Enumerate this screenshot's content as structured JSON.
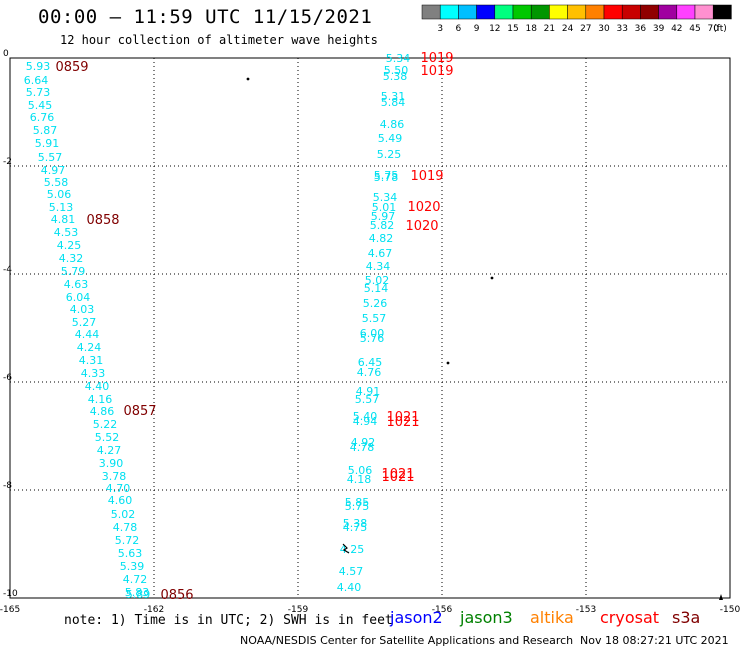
{
  "header": {
    "title": "00:00 – 11:59 UTC 11/15/2021",
    "subtitle": "12 hour collection of altimeter wave heights"
  },
  "colorbar": {
    "unit_label": "(ft)",
    "ticks": [
      "3",
      "6",
      "9",
      "12",
      "15",
      "18",
      "21",
      "24",
      "27",
      "30",
      "33",
      "36",
      "39",
      "42",
      "45",
      "70"
    ],
    "colors": [
      "#808080",
      "#00ffff",
      "#00bfff",
      "#0000ff",
      "#00ff7f",
      "#00c800",
      "#009600",
      "#ffff00",
      "#ffc000",
      "#ff8000",
      "#ff0000",
      "#c80000",
      "#900000",
      "#a000a0",
      "#ff40ff",
      "#ff90d0",
      "#000000"
    ]
  },
  "axes": {
    "x_ticks": [
      "-165",
      "-162",
      "-159",
      "-156",
      "-153",
      "-150"
    ],
    "y_ticks": [
      "0",
      "-2",
      "-4",
      "-6",
      "-8",
      "-10"
    ]
  },
  "map_data": {
    "swh_color": "#00e0f0",
    "time_color": "#800000",
    "pressure_color": "#ff0000",
    "track_a_values": [
      "5.93",
      "6.64",
      "5.73",
      "5.45",
      "6.76",
      "5.87",
      "5.91",
      "5.57",
      "4.97",
      "5.58",
      "5.06",
      "5.13",
      "4.81",
      "4.53",
      "4.25",
      "4.32",
      "5.79",
      "4.63",
      "6.04",
      "4.03",
      "5.27",
      "4.44",
      "4.24",
      "4.31",
      "4.33",
      "4.40",
      "4.16",
      "4.86",
      "5.22",
      "5.52",
      "4.27",
      "3.90",
      "3.78",
      "4.70",
      "4.60",
      "5.02",
      "4.78",
      "5.72",
      "5.63",
      "5.39",
      "4.72",
      "5.83",
      "5.89"
    ],
    "track_a_times": [
      "0859",
      "0858",
      "0857",
      "0856"
    ],
    "track_b_values": [
      "5.34",
      "5.50",
      "5.38",
      "5.31",
      "5.84",
      "4.86",
      "5.49",
      "5.25",
      "5.75",
      "5.78",
      "5.34",
      "5.01",
      "5.97",
      "5.82",
      "4.82",
      "4.67",
      "4.34",
      "5.02",
      "5.14",
      "5.26",
      "5.57",
      "6.00",
      "5.76",
      "6.45",
      "4.76",
      "4.91",
      "5.57",
      "5.40",
      "4.94",
      "4.92",
      "4.78",
      "5.06",
      "4.18",
      "5.85",
      "5.75",
      "5.38",
      "4.75",
      "4.25",
      "4.57",
      "4.40"
    ],
    "pressures": [
      "1019",
      "1019",
      "1019",
      "1020",
      "1020",
      "1021",
      "1021",
      "1021",
      "1021"
    ]
  },
  "footer": {
    "note": "note:  1) Time is in UTC; 2) SWH is in feet",
    "missions": [
      {
        "name": "jason2",
        "color": "#0000ff"
      },
      {
        "name": "jason3",
        "color": "#008000"
      },
      {
        "name": "altika",
        "color": "#ff8000"
      },
      {
        "name": "cryosat",
        "color": "#ff0000"
      },
      {
        "name": "s3a",
        "color": "#800000"
      }
    ],
    "credits": "NOAA/NESDIS Center for Satellite Applications and Research",
    "generated": "Nov 18 08:27:21 UTC 2021"
  }
}
